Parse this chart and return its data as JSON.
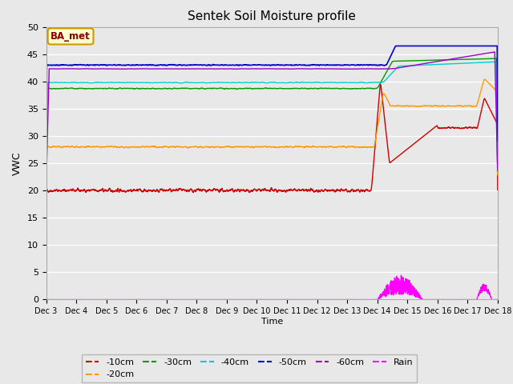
{
  "title": "Sentek Soil Moisture profile",
  "xlabel": "Time",
  "ylabel": "VWC",
  "ylim": [
    0,
    50
  ],
  "xlim": [
    0,
    15
  ],
  "background_color": "#e8e8e8",
  "plot_bg_color": "#e8e8e8",
  "tick_labels": [
    "Dec 3",
    "Dec 4",
    "Dec 5",
    "Dec 6",
    "Dec 7",
    "Dec 8",
    "Dec 9",
    "Dec 10",
    "Dec 11",
    "Dec 12",
    "Dec 13",
    "Dec 14",
    "Dec 15",
    "Dec 16",
    "Dec 17",
    "Dec 18"
  ],
  "series": {
    "10cm": {
      "color": "#cc0000",
      "label": "-10cm"
    },
    "20cm": {
      "color": "#ff9900",
      "label": "-20cm"
    },
    "30cm": {
      "color": "#009900",
      "label": "-30cm"
    },
    "40cm": {
      "color": "#00cccc",
      "label": "-40cm"
    },
    "50cm": {
      "color": "#0000cc",
      "label": "-50cm"
    },
    "60cm": {
      "color": "#9900cc",
      "label": "-60cm"
    },
    "rain": {
      "color": "#ff00ff",
      "label": "Rain"
    }
  },
  "legend_label": "BA_met",
  "legend_bg": "#ffffcc",
  "legend_border": "#cc9900"
}
